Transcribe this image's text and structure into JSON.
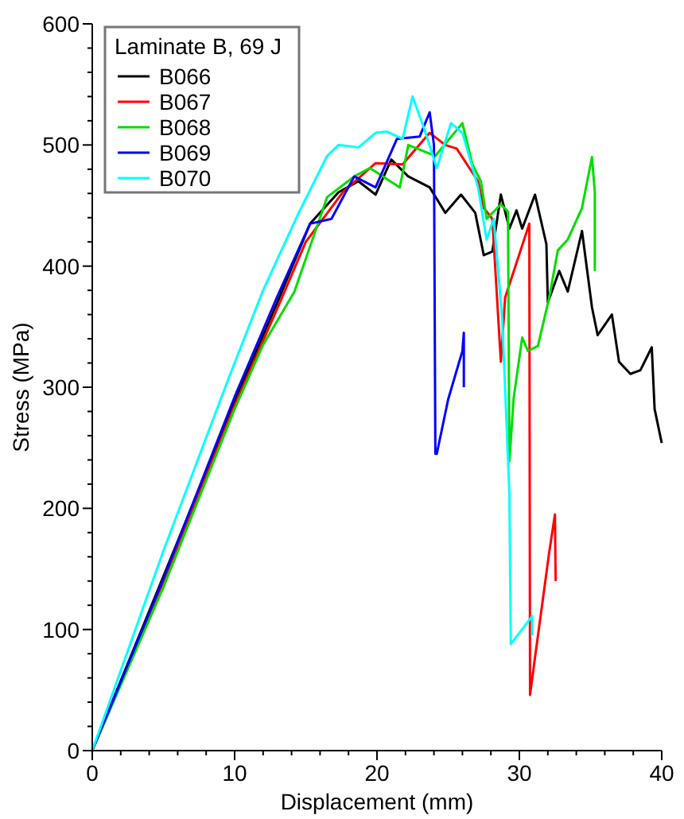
{
  "chart_data": {
    "type": "line",
    "xlabel": "Displacement (mm)",
    "ylabel": "Stress (MPa)",
    "legend_title": "Laminate B, 69 J",
    "legend": "top left",
    "grid": false,
    "marker": "none",
    "line_style": "solid",
    "xlim": [
      0,
      40
    ],
    "ylim": [
      0,
      600
    ],
    "xticks": [
      0,
      {
        "value": 2,
        "label": null
      },
      {
        "value": 4,
        "label": null
      },
      {
        "value": 6,
        "label": null
      },
      {
        "value": 8,
        "label": null
      },
      10,
      {
        "value": 12,
        "label": null
      },
      {
        "value": 14,
        "label": null
      },
      {
        "value": 16,
        "label": null
      },
      {
        "value": 18,
        "label": null
      },
      20,
      {
        "value": 22,
        "label": null
      },
      {
        "value": 24,
        "label": null
      },
      {
        "value": 26,
        "label": null
      },
      {
        "value": 28,
        "label": null
      },
      30,
      {
        "value": 32,
        "label": null
      },
      {
        "value": 34,
        "label": null
      },
      {
        "value": 36,
        "label": null
      },
      {
        "value": 38,
        "label": null
      },
      40
    ],
    "yticks": [
      0,
      {
        "value": 20,
        "label": null
      },
      {
        "value": 40,
        "label": null
      },
      {
        "value": 60,
        "label": null
      },
      {
        "value": 80,
        "label": null
      },
      100,
      {
        "value": 120,
        "label": null
      },
      {
        "value": 140,
        "label": null
      },
      {
        "value": 160,
        "label": null
      },
      {
        "value": 180,
        "label": null
      },
      200,
      {
        "value": 220,
        "label": null
      },
      {
        "value": 240,
        "label": null
      },
      {
        "value": 260,
        "label": null
      },
      {
        "value": 280,
        "label": null
      },
      300,
      {
        "value": 320,
        "label": null
      },
      {
        "value": 340,
        "label": null
      },
      {
        "value": 360,
        "label": null
      },
      {
        "value": 380,
        "label": null
      },
      400,
      {
        "value": 420,
        "label": null
      },
      {
        "value": 440,
        "label": null
      },
      {
        "value": 460,
        "label": null
      },
      {
        "value": 480,
        "label": null
      },
      500,
      {
        "value": 520,
        "label": null
      },
      {
        "value": 540,
        "label": null
      },
      {
        "value": 560,
        "label": null
      },
      {
        "value": 580,
        "label": null
      },
      600
    ],
    "series": [
      {
        "name": "B066",
        "color": "#000000",
        "x": [
          0,
          10,
          13,
          15.3,
          17.3,
          18.7,
          19.9,
          21,
          22.2,
          23.7,
          24.8,
          25.9,
          26.9,
          27.5,
          28.1,
          28.7,
          29.3,
          29.8,
          30.2,
          31.1,
          31.9,
          32,
          32.8,
          33.4,
          34.4,
          35.1,
          35.5,
          36.5,
          37,
          37.8,
          38.5,
          39.3,
          39.5,
          40
        ],
        "values": [
          0,
          288,
          370,
          435,
          461,
          470,
          459,
          488,
          474,
          465,
          444,
          459,
          444,
          409,
          412,
          459,
          431,
          446,
          431,
          459,
          418,
          370,
          396,
          379,
          429,
          366,
          343,
          360,
          321,
          311,
          314,
          333,
          282,
          254
        ]
      },
      {
        "name": "B067",
        "color": "#ff0000",
        "x": [
          0,
          5,
          10,
          13,
          15,
          17.6,
          19.9,
          21.8,
          23.7,
          24.8,
          25.6,
          27.1,
          27.5,
          28.1,
          28.7,
          29,
          30.7,
          30.75,
          31.1,
          32.1,
          32.5,
          32.55
        ],
        "values": [
          0,
          138,
          285,
          365,
          420,
          461,
          485,
          484,
          510,
          500,
          497,
          470,
          448,
          439,
          321,
          374,
          435,
          46,
          77,
          164,
          195,
          140
        ]
      },
      {
        "name": "B068",
        "color": "#00dd00",
        "x": [
          0,
          5,
          10,
          12,
          14.2,
          16.5,
          18.4,
          19.5,
          21.6,
          22.2,
          24.1,
          26,
          26.7,
          27.3,
          27.7,
          28.7,
          29.2,
          29.3,
          29.6,
          30.2,
          30.6,
          31.3,
          32.1,
          32.7,
          33.4,
          34.4,
          35.1,
          35.3,
          35.3
        ],
        "values": [
          0,
          135,
          282,
          335,
          379,
          457,
          474,
          481,
          465,
          500,
          491,
          518,
          484,
          470,
          439,
          451,
          445,
          239,
          291,
          341,
          330,
          334,
          374,
          413,
          422,
          448,
          490,
          461,
          396
        ]
      },
      {
        "name": "B069",
        "color": "#0000ff",
        "x": [
          0,
          5,
          10,
          13,
          15.3,
          16.8,
          18.4,
          19.9,
          21.4,
          23,
          23.7,
          24,
          24.1,
          24.2,
          25,
          26,
          26.1,
          26.1
        ],
        "values": [
          0,
          142,
          292,
          375,
          435,
          439,
          474,
          465,
          505,
          507,
          527,
          500,
          245,
          245,
          290,
          330,
          345,
          300
        ]
      },
      {
        "name": "B070",
        "color": "#00ffff",
        "x": [
          0,
          5,
          9.6,
          12,
          14.5,
          16.5,
          17.3,
          18.7,
          19.9,
          20.7,
          21.8,
          22.5,
          23.3,
          24.2,
          25.2,
          26,
          27.1,
          27.7,
          28.2,
          28.8,
          29.3,
          29.4,
          30.9,
          30.9
        ],
        "values": [
          0,
          165,
          308,
          380,
          444,
          491,
          500,
          498,
          510,
          511,
          505,
          540,
          514,
          481,
          518,
          510,
          465,
          422,
          439,
          356,
          212,
          88,
          111,
          95
        ]
      }
    ]
  }
}
